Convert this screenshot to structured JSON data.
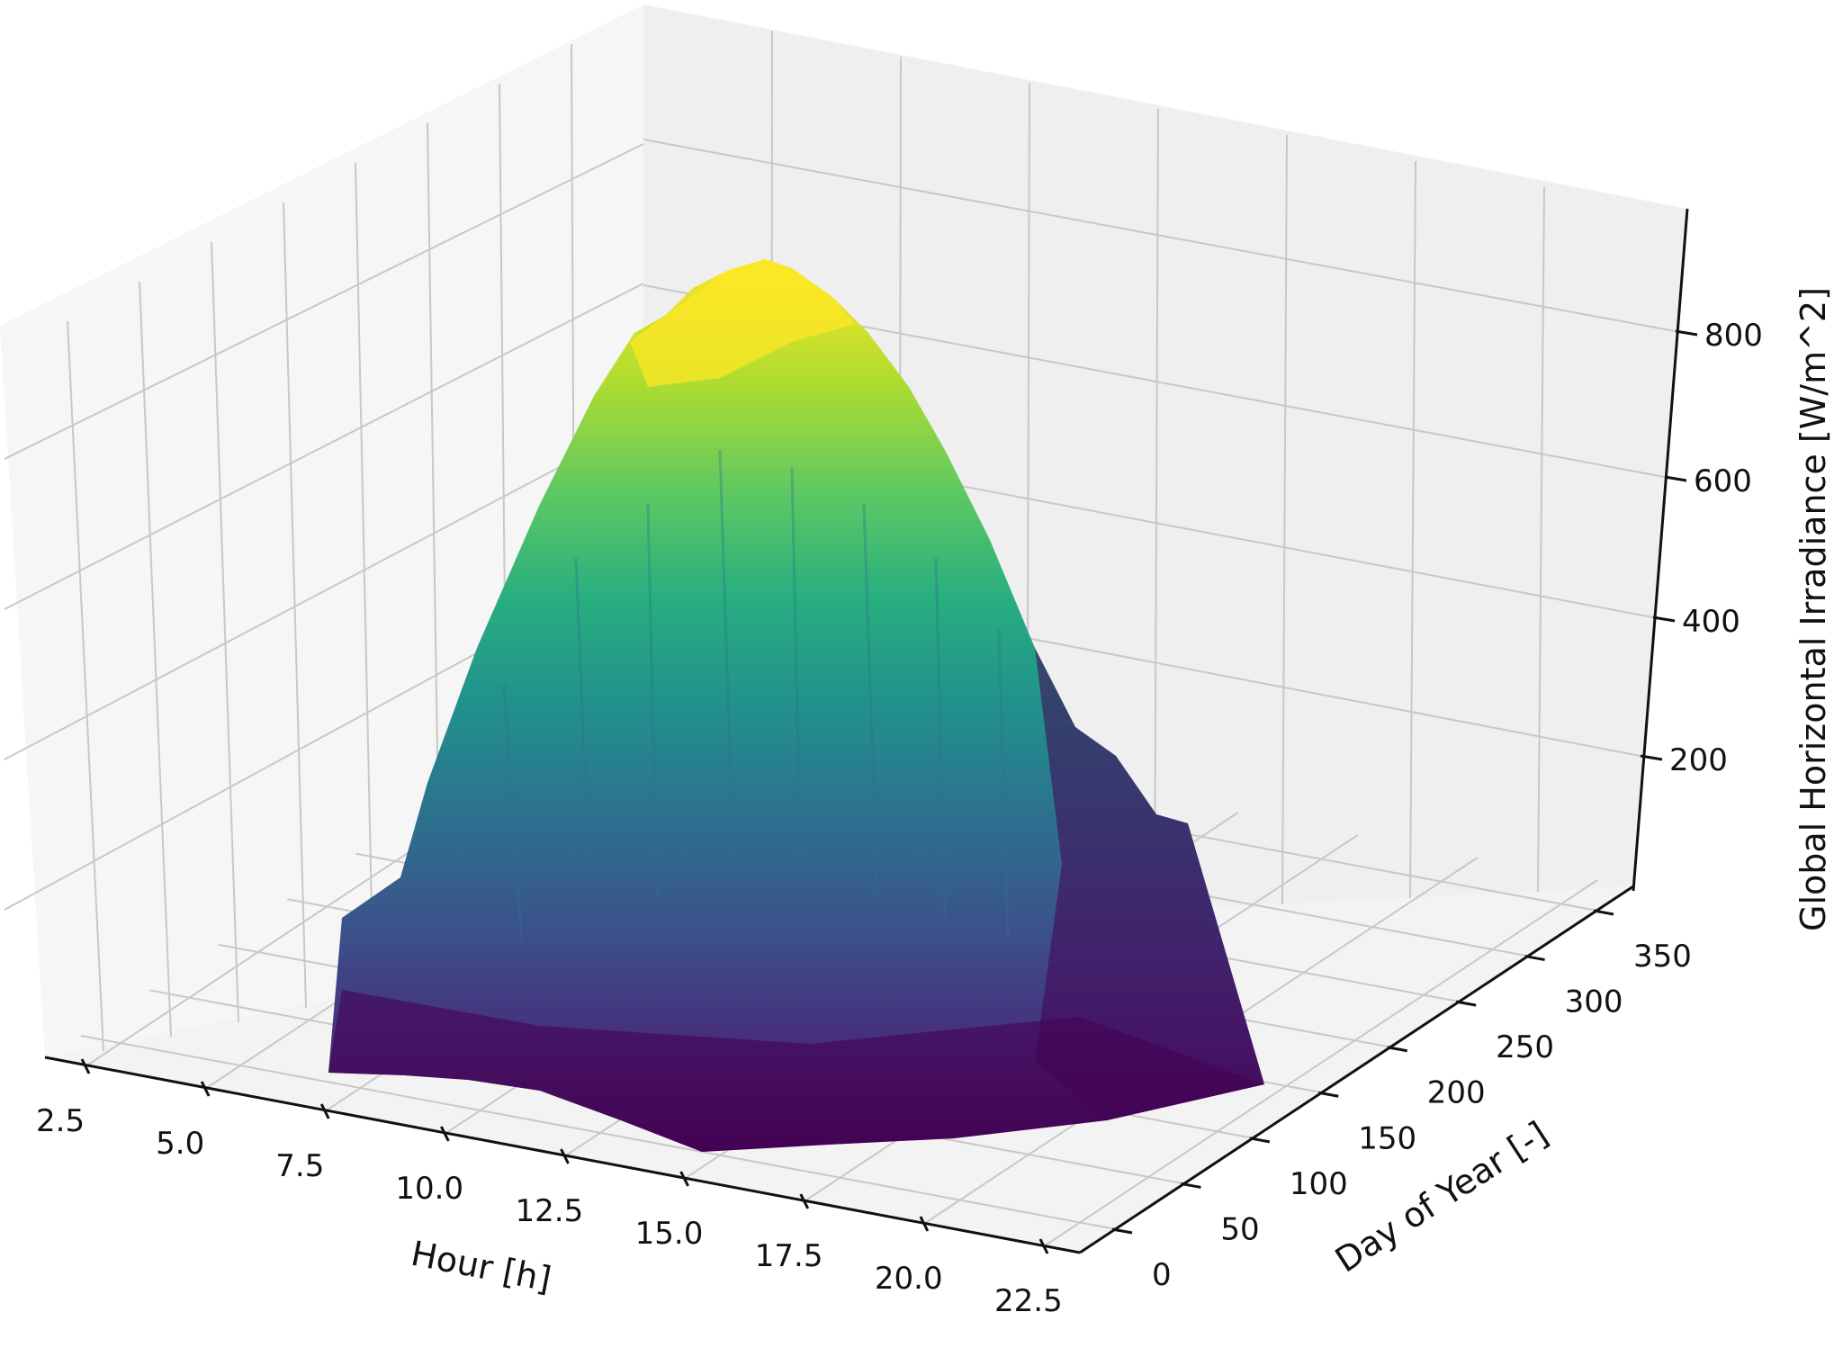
{
  "chart_data": {
    "type": "surface3d",
    "title": "",
    "colormap": "viridis",
    "colormap_stops": [
      "#440154",
      "#482878",
      "#3e4989",
      "#31688e",
      "#26828e",
      "#1f9e89",
      "#35b779",
      "#6ece58",
      "#b5de2b",
      "#fde725"
    ],
    "x_axis": {
      "label": "Hour [h]",
      "ticks": [
        "2.5",
        "5.0",
        "7.5",
        "10.0",
        "12.5",
        "15.0",
        "17.5",
        "20.0",
        "22.5"
      ],
      "range": [
        1,
        24
      ]
    },
    "y_axis": {
      "label": "Day of Year [-]",
      "ticks": [
        "0",
        "50",
        "100",
        "150",
        "200",
        "250",
        "300",
        "350"
      ],
      "range": [
        0,
        365
      ]
    },
    "z_axis": {
      "label": "Global Horizontal Irradiance [W/m^2]",
      "ticks": [
        "200",
        "400",
        "600",
        "800"
      ],
      "range": [
        0,
        950
      ]
    },
    "grid": true,
    "legend": null,
    "description": "Bell-shaped irradiance surface peaking near midday (hour ~12-13) at roughly 850-900 W/m^2 during summer days, falling to ~0 at early morning and evening hours.",
    "approx_profile_by_hour": {
      "x": [
        5,
        6,
        7,
        8,
        9,
        10,
        11,
        12,
        13,
        14,
        15,
        16,
        17,
        18,
        19,
        20
      ],
      "peak_z": [
        0,
        60,
        200,
        380,
        560,
        700,
        810,
        870,
        880,
        820,
        700,
        540,
        360,
        190,
        60,
        0
      ]
    }
  }
}
